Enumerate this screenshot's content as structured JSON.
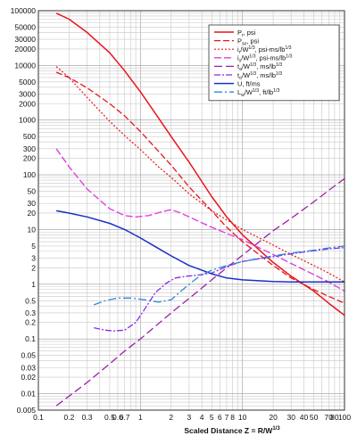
{
  "chart_data": {
    "type": "line",
    "xlabel": "Scaled Distance Z = R/W",
    "xlabel_sup": "1/3",
    "x_scale": "log",
    "y_scale": "log",
    "xlim": [
      0.1,
      100
    ],
    "ylim": [
      0.005,
      100000
    ],
    "grid": true,
    "legend_position": "top-right",
    "x_ticks": [
      {
        "v": 0.1,
        "label": "0.1"
      },
      {
        "v": 0.2,
        "label": "0.2"
      },
      {
        "v": 0.3,
        "label": "0.3"
      },
      {
        "v": 0.5,
        "label": "0.5"
      },
      {
        "v": 0.6,
        "label": "0.6"
      },
      {
        "v": 0.7,
        "label": "0.7"
      },
      {
        "v": 1,
        "label": "1"
      },
      {
        "v": 2,
        "label": "2"
      },
      {
        "v": 3,
        "label": "3"
      },
      {
        "v": 4,
        "label": "4"
      },
      {
        "v": 5,
        "label": "5"
      },
      {
        "v": 6,
        "label": "6"
      },
      {
        "v": 7,
        "label": "7"
      },
      {
        "v": 8,
        "label": "8"
      },
      {
        "v": 10,
        "label": "10"
      },
      {
        "v": 20,
        "label": "20"
      },
      {
        "v": 30,
        "label": "30"
      },
      {
        "v": 40,
        "label": "40"
      },
      {
        "v": 50,
        "label": "50"
      },
      {
        "v": 70,
        "label": "70"
      },
      {
        "v": 80,
        "label": "80"
      },
      {
        "v": 100,
        "label": "100"
      }
    ],
    "y_ticks": [
      {
        "v": 0.005,
        "label": "0.005"
      },
      {
        "v": 0.01,
        "label": "0.01"
      },
      {
        "v": 0.02,
        "label": "0.02"
      },
      {
        "v": 0.03,
        "label": "0.03"
      },
      {
        "v": 0.05,
        "label": "0.05"
      },
      {
        "v": 0.1,
        "label": "0.1"
      },
      {
        "v": 0.2,
        "label": "0.2"
      },
      {
        "v": 0.3,
        "label": "0.3"
      },
      {
        "v": 0.5,
        "label": "0.5"
      },
      {
        "v": 1,
        "label": "1"
      },
      {
        "v": 2,
        "label": "2"
      },
      {
        "v": 3,
        "label": "3"
      },
      {
        "v": 5,
        "label": "5"
      },
      {
        "v": 10,
        "label": "10"
      },
      {
        "v": 20,
        "label": "20"
      },
      {
        "v": 30,
        "label": "30"
      },
      {
        "v": 50,
        "label": "50"
      },
      {
        "v": 100,
        "label": "100"
      },
      {
        "v": 200,
        "label": "200"
      },
      {
        "v": 300,
        "label": "300"
      },
      {
        "v": 500,
        "label": "500"
      },
      {
        "v": 1000,
        "label": "1000"
      },
      {
        "v": 2000,
        "label": "2000"
      },
      {
        "v": 3000,
        "label": "3000"
      },
      {
        "v": 5000,
        "label": "5000"
      },
      {
        "v": 10000,
        "label": "10000"
      },
      {
        "v": 20000,
        "label": "20000"
      },
      {
        "v": 30000,
        "label": "30000"
      },
      {
        "v": 50000,
        "label": "50000"
      },
      {
        "v": 100000,
        "label": "100000"
      }
    ],
    "series": [
      {
        "name": "P",
        "sub": "r",
        "tail": ", psi",
        "color": "#e8141c",
        "dash": "",
        "width": 1.5,
        "points": [
          [
            0.15,
            90000
          ],
          [
            0.2,
            70000
          ],
          [
            0.3,
            40000
          ],
          [
            0.5,
            17000
          ],
          [
            0.7,
            8000
          ],
          [
            1,
            3300
          ],
          [
            1.5,
            1100
          ],
          [
            2,
            500
          ],
          [
            3,
            170
          ],
          [
            5,
            40
          ],
          [
            7,
            17
          ],
          [
            10,
            8
          ],
          [
            20,
            2.5
          ],
          [
            30,
            1.4
          ],
          [
            50,
            0.75
          ],
          [
            70,
            0.45
          ],
          [
            100,
            0.27
          ]
        ]
      },
      {
        "name": "P",
        "sub": "so",
        "tail": ", psi",
        "color": "#e8141c",
        "dash": "7,3",
        "width": 1.3,
        "points": [
          [
            0.15,
            7500
          ],
          [
            0.2,
            6000
          ],
          [
            0.3,
            3900
          ],
          [
            0.5,
            2000
          ],
          [
            0.7,
            1200
          ],
          [
            1,
            620
          ],
          [
            1.5,
            270
          ],
          [
            2,
            150
          ],
          [
            3,
            60
          ],
          [
            5,
            22
          ],
          [
            7,
            11
          ],
          [
            10,
            6
          ],
          [
            20,
            2.2
          ],
          [
            30,
            1.3
          ],
          [
            50,
            0.8
          ],
          [
            70,
            0.6
          ],
          [
            100,
            0.45
          ]
        ]
      },
      {
        "name": "i",
        "sub": "r",
        "tail": "/W",
        "sup": "1/3",
        "tail2": ", psi-ms/lb",
        "sup2": "1/3",
        "color": "#e8141c",
        "dash": "2,2",
        "width": 1.2,
        "points": [
          [
            0.15,
            9500
          ],
          [
            0.2,
            6000
          ],
          [
            0.3,
            2600
          ],
          [
            0.5,
            950
          ],
          [
            0.7,
            520
          ],
          [
            1,
            290
          ],
          [
            1.5,
            140
          ],
          [
            2,
            90
          ],
          [
            3,
            45
          ],
          [
            5,
            22
          ],
          [
            7,
            15
          ],
          [
            10,
            10
          ],
          [
            20,
            5.2
          ],
          [
            30,
            3.5
          ],
          [
            50,
            2.2
          ],
          [
            70,
            1.6
          ],
          [
            100,
            1.1
          ]
        ]
      },
      {
        "name": "i",
        "sub": "s",
        "tail": "/W",
        "sup": "1/3",
        "tail2": ", psi-ms/lb",
        "sup2": "1/3",
        "color": "#e040e0",
        "dash": "8,3",
        "width": 1.4,
        "points": [
          [
            0.15,
            300
          ],
          [
            0.2,
            140
          ],
          [
            0.3,
            55
          ],
          [
            0.5,
            24
          ],
          [
            0.7,
            18
          ],
          [
            0.9,
            17
          ],
          [
            1.2,
            18
          ],
          [
            1.6,
            21
          ],
          [
            2,
            23
          ],
          [
            2.5,
            20
          ],
          [
            3,
            17
          ],
          [
            5,
            11
          ],
          [
            7,
            8.5
          ],
          [
            10,
            6.5
          ],
          [
            20,
            3.5
          ],
          [
            30,
            2.4
          ],
          [
            50,
            1.5
          ],
          [
            70,
            1.1
          ],
          [
            100,
            0.75
          ]
        ]
      },
      {
        "name": "t",
        "sub": "a",
        "tail": "/W",
        "sup": "1/3",
        "tail2": ", ms/lb",
        "sup2": "1/3",
        "color": "#9e1fa8",
        "dash": "9,4",
        "width": 1.3,
        "points": [
          [
            0.15,
            0.006
          ],
          [
            0.2,
            0.009
          ],
          [
            0.3,
            0.016
          ],
          [
            0.5,
            0.035
          ],
          [
            0.7,
            0.06
          ],
          [
            1,
            0.1
          ],
          [
            2,
            0.3
          ],
          [
            3,
            0.55
          ],
          [
            5,
            1.2
          ],
          [
            7,
            2
          ],
          [
            10,
            3.4
          ],
          [
            20,
            9.5
          ],
          [
            30,
            16
          ],
          [
            50,
            32
          ],
          [
            70,
            52
          ],
          [
            100,
            85
          ]
        ]
      },
      {
        "name": "t",
        "sub": "o",
        "tail": "/W",
        "sup": "1/3",
        "tail2": ", ms/lb",
        "sup2": "1/3",
        "color": "#8a2be2",
        "dash": "7,2,2,2",
        "width": 1.3,
        "points": [
          [
            0.35,
            0.16
          ],
          [
            0.45,
            0.145
          ],
          [
            0.55,
            0.14
          ],
          [
            0.7,
            0.145
          ],
          [
            0.9,
            0.2
          ],
          [
            1.1,
            0.35
          ],
          [
            1.4,
            0.7
          ],
          [
            1.8,
            1.05
          ],
          [
            2.2,
            1.3
          ],
          [
            2.8,
            1.4
          ],
          [
            3.5,
            1.45
          ],
          [
            5,
            1.6
          ],
          [
            7,
            2.1
          ],
          [
            10,
            2.6
          ],
          [
            20,
            3.2
          ],
          [
            30,
            3.6
          ],
          [
            50,
            4.1
          ],
          [
            70,
            4.4
          ],
          [
            100,
            4.7
          ]
        ]
      },
      {
        "name": "U",
        "sub": "",
        "tail": ", ft/ms",
        "color": "#1a2fc4",
        "dash": "",
        "width": 1.5,
        "points": [
          [
            0.15,
            22
          ],
          [
            0.2,
            20
          ],
          [
            0.3,
            17
          ],
          [
            0.5,
            13
          ],
          [
            0.7,
            10
          ],
          [
            1,
            7
          ],
          [
            1.5,
            4.5
          ],
          [
            2,
            3.3
          ],
          [
            3,
            2.2
          ],
          [
            5,
            1.55
          ],
          [
            7,
            1.3
          ],
          [
            10,
            1.2
          ],
          [
            20,
            1.12
          ],
          [
            30,
            1.1
          ],
          [
            50,
            1.1
          ],
          [
            70,
            1.1
          ],
          [
            100,
            1.1
          ]
        ]
      },
      {
        "name": "L",
        "sub": "w",
        "tail": "/W",
        "sup": "1/3",
        "tail2": ", ft/lb",
        "sup2": "1/3",
        "color": "#2a88d8",
        "dash": "9,3,2,3",
        "width": 1.3,
        "points": [
          [
            0.35,
            0.42
          ],
          [
            0.45,
            0.5
          ],
          [
            0.6,
            0.56
          ],
          [
            0.8,
            0.56
          ],
          [
            1.1,
            0.52
          ],
          [
            1.5,
            0.47
          ],
          [
            2,
            0.52
          ],
          [
            2.5,
            0.75
          ],
          [
            3.2,
            1.1
          ],
          [
            4,
            1.5
          ],
          [
            5,
            1.8
          ],
          [
            7,
            2.2
          ],
          [
            10,
            2.6
          ],
          [
            20,
            3.3
          ],
          [
            30,
            3.7
          ],
          [
            50,
            4.2
          ],
          [
            70,
            4.6
          ],
          [
            100,
            5
          ]
        ]
      }
    ]
  }
}
